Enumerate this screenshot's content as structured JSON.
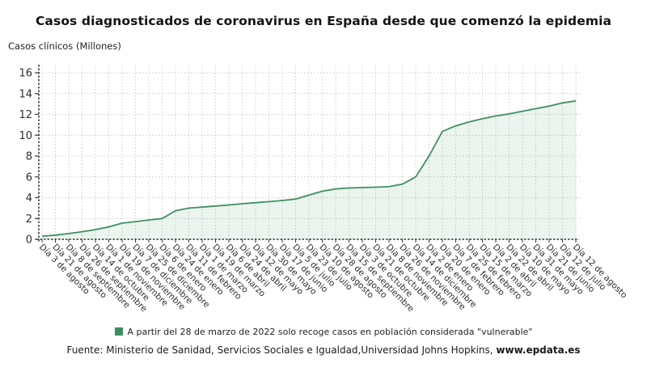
{
  "title": "Casos diagnosticados de coronavirus en España desde que comenzó la epidemia",
  "ylabel": "Casos clínicos (Millones)",
  "legend": {
    "marker_color": "#3f8f63",
    "label": "A partir del 28 de marzo de 2022 solo recoge casos en población considerada \"vulnerable\""
  },
  "footer": {
    "source_prefix": "Fuente: Ministerio de Sanidad, Servicios Sociales e Igualdad,Universidad Johns Hopkins, ",
    "source_site": "www.epdata.es"
  },
  "chart_data": {
    "type": "area",
    "title": "Casos diagnosticados de coronavirus en España desde que comenzó la epidemia",
    "xlabel": "",
    "ylabel": "Casos clínicos (Millones)",
    "ylim": [
      0,
      16
    ],
    "yticks": [
      0,
      2,
      4,
      6,
      8,
      10,
      12,
      14,
      16
    ],
    "grid": true,
    "legend_position": "bottom",
    "line_color": "#3f8f63",
    "fill_color": "rgba(63,143,99,0.10)",
    "grid_color": "#cccccc",
    "axis_color": "#3a3a3a",
    "tick_text_color": "#2f2f2f",
    "categories": [
      "Día 3 de agosto",
      "Día 21 de agosto",
      "Día 8 de septiembre",
      "Día 26 de septiembre",
      "Día 14 de octubre",
      "Día 1 de noviembre",
      "Día 19 de noviembre",
      "Día 7 de diciembre",
      "Día 25 de diciembre",
      "Día 6 de enero",
      "Día 24 de enero",
      "Día 11 de febrero",
      "Día 1 de marzo",
      "Día 19 de marzo",
      "Día 6 de abril",
      "Día 24 de abril",
      "Día 12 de mayo",
      "Día 30 de mayo",
      "Día 17 de junio",
      "Día 5 de julio",
      "Día 23 de julio",
      "Día 10 de agosto",
      "Día 28 de agosto",
      "Día 15 de septiembre",
      "Día 3 de octubre",
      "Día 21 de octubre",
      "Día 8 de noviembre",
      "Día 26 de noviembre",
      "Día 14 de diciembre",
      "Día 2 de enero",
      "Día 20 de enero",
      "Día 7 de febrero",
      "Día 25 de febrero",
      "Día 15 de marzo",
      "Día 2 de abril",
      "Día 22 de abril",
      "Día 10 de mayo",
      "Día 31 de mayo",
      "Día 21 de junio",
      "Día 12 de julio",
      "Día 12 de agosto"
    ],
    "values": [
      0.3,
      0.4,
      0.55,
      0.73,
      0.93,
      1.2,
      1.55,
      1.7,
      1.86,
      2.0,
      2.75,
      3.0,
      3.1,
      3.2,
      3.3,
      3.42,
      3.52,
      3.62,
      3.73,
      3.87,
      4.25,
      4.62,
      4.85,
      4.93,
      4.97,
      5.01,
      5.06,
      5.3,
      6.0,
      8.0,
      10.38,
      10.9,
      11.28,
      11.58,
      11.85,
      12.05,
      12.3,
      12.55,
      12.8,
      13.1,
      13.3
    ]
  }
}
